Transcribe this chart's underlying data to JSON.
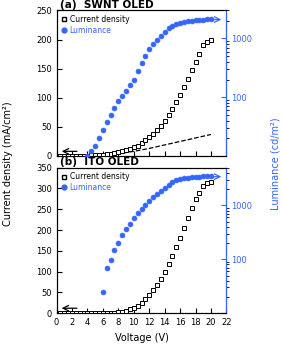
{
  "title_a": "(a)  SWNT OLED",
  "title_b": "(b)  ITO OLED",
  "xlabel": "Voltage (V)",
  "ylabel_left": "Current density (mA/cm²)",
  "ylabel_right": "Luminance (cd/m²)",
  "legend_cd": "Current density",
  "legend_lum": "Luminance",
  "xlim": [
    0,
    22
  ],
  "swnt_cd_x": [
    0,
    0.5,
    1,
    1.5,
    2,
    2.5,
    3,
    3.5,
    4,
    4.5,
    5,
    5.5,
    6,
    6.5,
    7,
    7.5,
    8,
    8.5,
    9,
    9.5,
    10,
    10.5,
    11,
    11.5,
    12,
    12.5,
    13,
    13.5,
    14,
    14.5,
    15,
    15.5,
    16,
    16.5,
    17,
    17.5,
    18,
    18.5,
    19,
    19.5,
    20
  ],
  "swnt_cd_y": [
    0,
    0,
    0,
    0,
    0.1,
    0.2,
    0.3,
    0.5,
    0.7,
    1,
    1.4,
    1.8,
    2.3,
    3,
    4,
    5,
    6.5,
    8,
    10,
    12,
    15,
    18,
    22,
    27,
    32,
    38,
    45,
    52,
    60,
    70,
    80,
    92,
    105,
    118,
    132,
    148,
    162,
    175,
    190,
    195,
    200
  ],
  "swnt_cd_ylim": [
    0,
    250
  ],
  "swnt_lum_x": [
    4,
    4.5,
    5,
    5.5,
    6,
    6.5,
    7,
    7.5,
    8,
    8.5,
    9,
    9.5,
    10,
    10.5,
    11,
    11.5,
    12,
    12.5,
    13,
    13.5,
    14,
    14.5,
    15,
    15.5,
    16,
    16.5,
    17,
    17.5,
    18,
    18.5,
    19,
    19.5,
    20
  ],
  "swnt_lum_y": [
    10,
    12,
    15,
    20,
    28,
    38,
    50,
    65,
    85,
    105,
    130,
    160,
    200,
    280,
    380,
    500,
    650,
    800,
    950,
    1100,
    1300,
    1500,
    1650,
    1750,
    1850,
    1920,
    1980,
    2020,
    2050,
    2080,
    2100,
    2120,
    2150
  ],
  "swnt_lum_ylim_log": [
    10,
    3000
  ],
  "swnt_dashed_x": [
    0,
    2,
    4,
    6,
    8,
    10,
    12,
    14,
    16,
    18,
    20
  ],
  "swnt_dashed_y": [
    0,
    0.3,
    1,
    2,
    4,
    8,
    13,
    19,
    25,
    31,
    37
  ],
  "ito_cd_x": [
    0,
    0.5,
    1,
    1.5,
    2,
    2.5,
    3,
    3.5,
    4,
    4.5,
    5,
    5.5,
    6,
    6.5,
    7,
    7.5,
    8,
    8.5,
    9,
    9.5,
    10,
    10.5,
    11,
    11.5,
    12,
    12.5,
    13,
    13.5,
    14,
    14.5,
    15,
    15.5,
    16,
    16.5,
    17,
    17.5,
    18,
    18.5,
    19,
    19.5,
    20
  ],
  "ito_cd_y": [
    0,
    0,
    0,
    0,
    0,
    0,
    0,
    0,
    0,
    0,
    0,
    0,
    0.1,
    0.2,
    0.5,
    1,
    2,
    3.5,
    6,
    9,
    13,
    18,
    25,
    33,
    43,
    55,
    68,
    83,
    100,
    118,
    138,
    160,
    182,
    205,
    228,
    252,
    275,
    290,
    305,
    312,
    315
  ],
  "ito_cd_ylim": [
    0,
    350
  ],
  "ito_lum_x": [
    6,
    6.5,
    7,
    7.5,
    8,
    8.5,
    9,
    9.5,
    10,
    10.5,
    11,
    11.5,
    12,
    12.5,
    13,
    13.5,
    14,
    14.5,
    15,
    15.5,
    16,
    16.5,
    17,
    17.5,
    18,
    18.5,
    19,
    19.5,
    20
  ],
  "ito_lum_y": [
    25,
    70,
    95,
    150,
    200,
    280,
    360,
    460,
    580,
    720,
    870,
    1020,
    1200,
    1400,
    1600,
    1850,
    2100,
    2400,
    2700,
    2950,
    3100,
    3200,
    3280,
    3340,
    3380,
    3410,
    3430,
    3450,
    3460
  ],
  "ito_lum_ylim_log": [
    10,
    5000
  ],
  "marker_cd": "s",
  "marker_lum": "o",
  "color_cd": "black",
  "color_lum": "#3366ff",
  "color_right_axis": "#3366ff",
  "markersize_cd": 3.0,
  "markersize_lum": 3.5
}
